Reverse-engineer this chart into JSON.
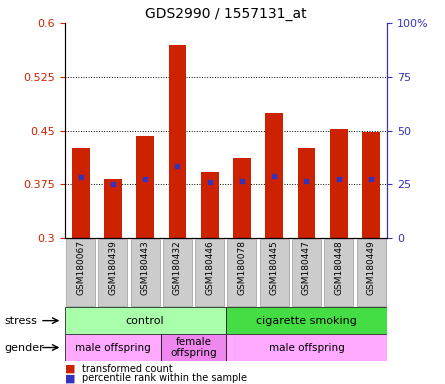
{
  "title": "GDS2990 / 1557131_at",
  "samples": [
    "GSM180067",
    "GSM180439",
    "GSM180443",
    "GSM180432",
    "GSM180446",
    "GSM180078",
    "GSM180445",
    "GSM180447",
    "GSM180448",
    "GSM180449"
  ],
  "bar_values": [
    0.425,
    0.383,
    0.442,
    0.57,
    0.392,
    0.412,
    0.474,
    0.425,
    0.452,
    0.448
  ],
  "blue_values": [
    0.385,
    0.375,
    0.383,
    0.4,
    0.378,
    0.38,
    0.387,
    0.38,
    0.383,
    0.382
  ],
  "y_min": 0.3,
  "y_max": 0.6,
  "y_ticks": [
    0.3,
    0.375,
    0.45,
    0.525,
    0.6
  ],
  "y_right_ticks": [
    0,
    25,
    50,
    75,
    100
  ],
  "y_right_labels": [
    "0",
    "25",
    "50",
    "75",
    "100%"
  ],
  "bar_color": "#cc2200",
  "blue_color": "#3333bb",
  "stress_groups": [
    {
      "label": "control",
      "start": 0,
      "end": 5,
      "color": "#aaffaa"
    },
    {
      "label": "cigarette smoking",
      "start": 5,
      "end": 10,
      "color": "#44dd44"
    }
  ],
  "gender_groups": [
    {
      "label": "male offspring",
      "start": 0,
      "end": 3,
      "color": "#ffaaff"
    },
    {
      "label": "female\noffspring",
      "start": 3,
      "end": 5,
      "color": "#ee88ee"
    },
    {
      "label": "male offspring",
      "start": 5,
      "end": 10,
      "color": "#ffaaff"
    }
  ],
  "stress_label": "stress",
  "gender_label": "gender",
  "legend_red": "transformed count",
  "legend_blue": "percentile rank within the sample",
  "tick_bg_color": "#cccccc",
  "tick_border_color": "#999999"
}
